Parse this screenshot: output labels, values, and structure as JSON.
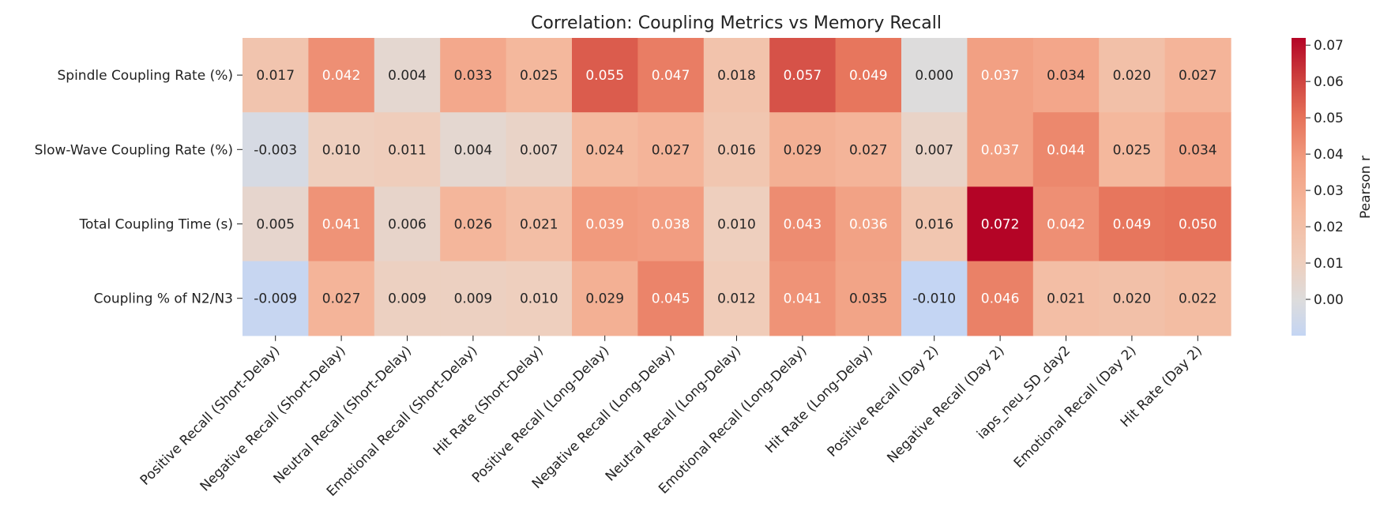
{
  "chart_data": {
    "type": "heatmap",
    "title": "Correlation: Coupling Metrics vs Memory Recall",
    "rows": [
      "Spindle Coupling Rate (%)",
      "Slow-Wave Coupling Rate (%)",
      "Total Coupling Time (s)",
      "Coupling % of N2/N3"
    ],
    "columns": [
      "Positive Recall (Short-Delay)",
      "Negative Recall (Short-Delay)",
      "Neutral Recall (Short-Delay)",
      "Emotional Recall (Short-Delay)",
      "Hit Rate (Short-Delay)",
      "Positive Recall (Long-Delay)",
      "Negative Recall (Long-Delay)",
      "Neutral Recall (Long-Delay)",
      "Emotional Recall (Long-Delay)",
      "Hit Rate (Long-Delay)",
      "Positive Recall (Day 2)",
      "Negative Recall (Day 2)",
      "iaps_neu_SD_day2",
      "Emotional Recall (Day 2)",
      "Hit Rate (Day 2)"
    ],
    "values": [
      [
        0.017,
        0.042,
        0.004,
        0.033,
        0.025,
        0.055,
        0.047,
        0.018,
        0.057,
        0.049,
        0.0,
        0.037,
        0.034,
        0.02,
        0.027
      ],
      [
        -0.003,
        0.01,
        0.011,
        0.004,
        0.007,
        0.024,
        0.027,
        0.016,
        0.029,
        0.027,
        0.007,
        0.037,
        0.044,
        0.025,
        0.034
      ],
      [
        0.005,
        0.041,
        0.006,
        0.026,
        0.021,
        0.039,
        0.038,
        0.01,
        0.043,
        0.036,
        0.016,
        0.072,
        0.042,
        0.049,
        0.05
      ],
      [
        -0.009,
        0.027,
        0.009,
        0.009,
        0.01,
        0.029,
        0.045,
        0.012,
        0.041,
        0.035,
        -0.01,
        0.046,
        0.021,
        0.02,
        0.022
      ]
    ],
    "value_format": "0.000",
    "colormap": "coolwarm",
    "vmin": -0.01,
    "vmax": 0.072,
    "colorbar": {
      "label": "Pearson r",
      "ticks": [
        0.0,
        0.01,
        0.02,
        0.03,
        0.04,
        0.05,
        0.06,
        0.07
      ],
      "tick_labels": [
        "0.00",
        "0.01",
        "0.02",
        "0.03",
        "0.04",
        "0.05",
        "0.06",
        "0.07"
      ]
    }
  }
}
